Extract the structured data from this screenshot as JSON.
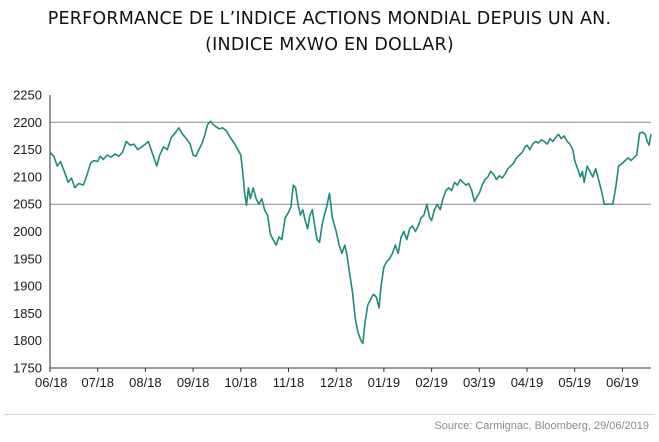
{
  "title": {
    "line1": "PERFORMANCE DE L’INDICE ACTIONS MONDIAL DEPUIS UN AN.",
    "line2": "(INDICE MXWO EN DOLLAR)"
  },
  "source": "Source: Carmignac, Bloomberg, 29/06/2019",
  "colors": {
    "line": "#1f8a7c",
    "grid": "#8c8c8c",
    "axis": "#333333"
  },
  "chart_data": {
    "type": "line",
    "x_tick_labels": [
      "06/18",
      "07/18",
      "08/18",
      "09/18",
      "10/18",
      "11/18",
      "12/18",
      "01/19",
      "02/19",
      "03/19",
      "04/19",
      "05/19",
      "06/19"
    ],
    "y_tick_labels": [
      "2250",
      "2200",
      "2150",
      "2100",
      "2050",
      "2000",
      "1950",
      "1900",
      "1850",
      "1800",
      "1750"
    ],
    "ylim": [
      1750,
      2250
    ],
    "gridlines": [
      2200,
      2050
    ],
    "xlim": [
      0,
      12.6
    ],
    "series": [
      {
        "values": [
          [
            0.0,
            2145
          ],
          [
            0.08,
            2138
          ],
          [
            0.15,
            2120
          ],
          [
            0.22,
            2128
          ],
          [
            0.3,
            2110
          ],
          [
            0.38,
            2090
          ],
          [
            0.45,
            2098
          ],
          [
            0.52,
            2080
          ],
          [
            0.6,
            2088
          ],
          [
            0.7,
            2085
          ],
          [
            0.78,
            2105
          ],
          [
            0.85,
            2125
          ],
          [
            0.92,
            2130
          ],
          [
            1.0,
            2128
          ],
          [
            1.05,
            2138
          ],
          [
            1.12,
            2132
          ],
          [
            1.2,
            2140
          ],
          [
            1.28,
            2136
          ],
          [
            1.36,
            2142
          ],
          [
            1.44,
            2138
          ],
          [
            1.52,
            2145
          ],
          [
            1.6,
            2165
          ],
          [
            1.68,
            2158
          ],
          [
            1.76,
            2160
          ],
          [
            1.84,
            2150
          ],
          [
            1.92,
            2155
          ],
          [
            2.0,
            2160
          ],
          [
            2.06,
            2165
          ],
          [
            2.12,
            2150
          ],
          [
            2.18,
            2135
          ],
          [
            2.24,
            2120
          ],
          [
            2.3,
            2140
          ],
          [
            2.38,
            2155
          ],
          [
            2.46,
            2150
          ],
          [
            2.54,
            2172
          ],
          [
            2.62,
            2180
          ],
          [
            2.7,
            2190
          ],
          [
            2.78,
            2178
          ],
          [
            2.86,
            2170
          ],
          [
            2.94,
            2160
          ],
          [
            3.0,
            2140
          ],
          [
            3.06,
            2138
          ],
          [
            3.12,
            2150
          ],
          [
            3.18,
            2160
          ],
          [
            3.24,
            2175
          ],
          [
            3.3,
            2195
          ],
          [
            3.36,
            2202
          ],
          [
            3.42,
            2196
          ],
          [
            3.48,
            2192
          ],
          [
            3.55,
            2188
          ],
          [
            3.62,
            2190
          ],
          [
            3.7,
            2184
          ],
          [
            3.78,
            2172
          ],
          [
            3.86,
            2162
          ],
          [
            3.94,
            2150
          ],
          [
            4.0,
            2140
          ],
          [
            4.04,
            2110
          ],
          [
            4.08,
            2070
          ],
          [
            4.12,
            2048
          ],
          [
            4.16,
            2080
          ],
          [
            4.2,
            2060
          ],
          [
            4.26,
            2080
          ],
          [
            4.32,
            2060
          ],
          [
            4.38,
            2050
          ],
          [
            4.44,
            2060
          ],
          [
            4.5,
            2040
          ],
          [
            4.56,
            2030
          ],
          [
            4.62,
            1995
          ],
          [
            4.68,
            1985
          ],
          [
            4.74,
            1975
          ],
          [
            4.8,
            1990
          ],
          [
            4.86,
            1985
          ],
          [
            4.93,
            2025
          ],
          [
            5.0,
            2035
          ],
          [
            5.05,
            2045
          ],
          [
            5.1,
            2085
          ],
          [
            5.15,
            2080
          ],
          [
            5.2,
            2050
          ],
          [
            5.25,
            2030
          ],
          [
            5.3,
            2040
          ],
          [
            5.35,
            2020
          ],
          [
            5.4,
            2005
          ],
          [
            5.45,
            2030
          ],
          [
            5.5,
            2040
          ],
          [
            5.55,
            2010
          ],
          [
            5.6,
            1985
          ],
          [
            5.65,
            1980
          ],
          [
            5.7,
            2010
          ],
          [
            5.75,
            2030
          ],
          [
            5.8,
            2045
          ],
          [
            5.86,
            2070
          ],
          [
            5.92,
            2025
          ],
          [
            6.0,
            2000
          ],
          [
            6.06,
            1975
          ],
          [
            6.12,
            1960
          ],
          [
            6.18,
            1975
          ],
          [
            6.22,
            1960
          ],
          [
            6.28,
            1925
          ],
          [
            6.34,
            1890
          ],
          [
            6.4,
            1840
          ],
          [
            6.46,
            1815
          ],
          [
            6.52,
            1800
          ],
          [
            6.56,
            1795
          ],
          [
            6.6,
            1830
          ],
          [
            6.66,
            1865
          ],
          [
            6.72,
            1875
          ],
          [
            6.78,
            1885
          ],
          [
            6.84,
            1880
          ],
          [
            6.9,
            1860
          ],
          [
            6.94,
            1900
          ],
          [
            7.0,
            1935
          ],
          [
            7.06,
            1945
          ],
          [
            7.12,
            1950
          ],
          [
            7.18,
            1960
          ],
          [
            7.24,
            1975
          ],
          [
            7.3,
            1960
          ],
          [
            7.36,
            1990
          ],
          [
            7.42,
            2000
          ],
          [
            7.48,
            1985
          ],
          [
            7.54,
            2005
          ],
          [
            7.6,
            2010
          ],
          [
            7.66,
            2000
          ],
          [
            7.72,
            2010
          ],
          [
            7.78,
            2025
          ],
          [
            7.84,
            2030
          ],
          [
            7.9,
            2050
          ],
          [
            7.96,
            2025
          ],
          [
            8.0,
            2020
          ],
          [
            8.06,
            2040
          ],
          [
            8.12,
            2050
          ],
          [
            8.18,
            2040
          ],
          [
            8.24,
            2060
          ],
          [
            8.3,
            2075
          ],
          [
            8.36,
            2080
          ],
          [
            8.42,
            2075
          ],
          [
            8.48,
            2090
          ],
          [
            8.54,
            2085
          ],
          [
            8.6,
            2095
          ],
          [
            8.66,
            2090
          ],
          [
            8.72,
            2085
          ],
          [
            8.78,
            2088
          ],
          [
            8.84,
            2075
          ],
          [
            8.9,
            2055
          ],
          [
            8.96,
            2065
          ],
          [
            9.0,
            2070
          ],
          [
            9.06,
            2085
          ],
          [
            9.12,
            2095
          ],
          [
            9.18,
            2100
          ],
          [
            9.24,
            2110
          ],
          [
            9.3,
            2105
          ],
          [
            9.36,
            2095
          ],
          [
            9.42,
            2102
          ],
          [
            9.48,
            2098
          ],
          [
            9.54,
            2105
          ],
          [
            9.6,
            2115
          ],
          [
            9.66,
            2120
          ],
          [
            9.72,
            2125
          ],
          [
            9.78,
            2135
          ],
          [
            9.84,
            2140
          ],
          [
            9.9,
            2145
          ],
          [
            9.96,
            2155
          ],
          [
            10.0,
            2158
          ],
          [
            10.06,
            2150
          ],
          [
            10.12,
            2160
          ],
          [
            10.18,
            2165
          ],
          [
            10.24,
            2162
          ],
          [
            10.3,
            2168
          ],
          [
            10.36,
            2165
          ],
          [
            10.42,
            2160
          ],
          [
            10.48,
            2170
          ],
          [
            10.54,
            2165
          ],
          [
            10.6,
            2172
          ],
          [
            10.66,
            2178
          ],
          [
            10.72,
            2170
          ],
          [
            10.78,
            2175
          ],
          [
            10.84,
            2165
          ],
          [
            10.9,
            2160
          ],
          [
            10.96,
            2150
          ],
          [
            11.0,
            2130
          ],
          [
            11.04,
            2120
          ],
          [
            11.08,
            2110
          ],
          [
            11.12,
            2100
          ],
          [
            11.16,
            2110
          ],
          [
            11.2,
            2090
          ],
          [
            11.26,
            2120
          ],
          [
            11.32,
            2110
          ],
          [
            11.38,
            2100
          ],
          [
            11.44,
            2115
          ],
          [
            11.5,
            2095
          ],
          [
            11.56,
            2075
          ],
          [
            11.62,
            2050
          ],
          [
            11.68,
            2050
          ],
          [
            11.74,
            2050
          ],
          [
            11.8,
            2050
          ],
          [
            11.86,
            2080
          ],
          [
            11.92,
            2120
          ],
          [
            12.0,
            2125
          ],
          [
            12.06,
            2130
          ],
          [
            12.12,
            2135
          ],
          [
            12.18,
            2130
          ],
          [
            12.24,
            2135
          ],
          [
            12.3,
            2140
          ],
          [
            12.36,
            2180
          ],
          [
            12.42,
            2182
          ],
          [
            12.48,
            2178
          ],
          [
            12.52,
            2165
          ],
          [
            12.56,
            2158
          ],
          [
            12.6,
            2178
          ]
        ]
      }
    ]
  }
}
